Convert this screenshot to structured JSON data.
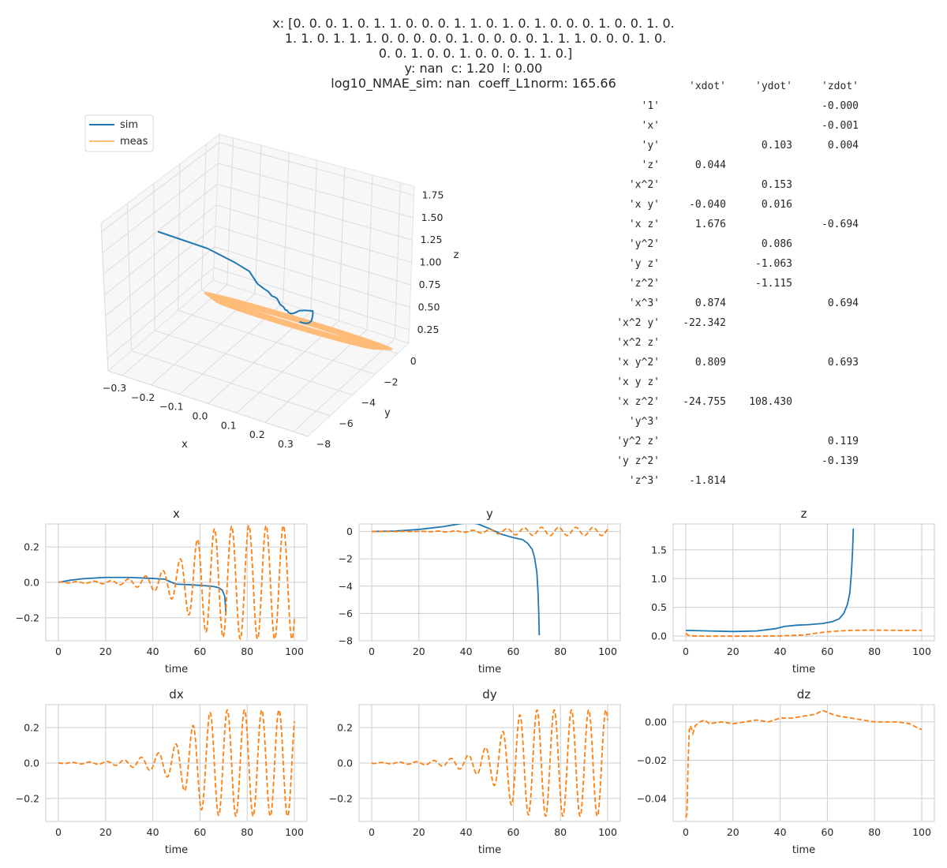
{
  "title_lines": [
    "x: [0. 0. 0. 1. 0. 1. 1. 0. 0. 0. 1. 1. 0. 1. 0. 1. 0. 0. 0. 1. 0. 0. 1. 0.",
    " 1. 1. 0. 1. 1. 1. 0. 0. 0. 0. 0. 1. 0. 0. 0. 0. 1. 1. 1. 0. 0. 0. 1. 0.",
    " 0. 0. 1. 0. 0. 1. 0. 0. 0. 1. 1. 0.]",
    "y: nan  c: 1.20  l: 0.00",
    "log10_NMAE_sim: nan  coeff_L1norm: 165.66"
  ],
  "colors": {
    "sim": "#1f77b4",
    "meas": "#ff7f0e",
    "meas_light": "#ffbb78",
    "grid": "#cccccc"
  },
  "coeff_table": {
    "columns": [
      "'xdot'",
      "'ydot'",
      "'zdot'"
    ],
    "rows": [
      {
        "term": "'1'",
        "xdot": "",
        "ydot": "",
        "zdot": "-0.000"
      },
      {
        "term": "'x'",
        "xdot": "",
        "ydot": "",
        "zdot": "-0.001"
      },
      {
        "term": "'y'",
        "xdot": "",
        "ydot": "0.103",
        "zdot": "0.004"
      },
      {
        "term": "'z'",
        "xdot": "0.044",
        "ydot": "",
        "zdot": ""
      },
      {
        "term": "'x^2'",
        "xdot": "",
        "ydot": "0.153",
        "zdot": ""
      },
      {
        "term": "'x y'",
        "xdot": "-0.040",
        "ydot": "0.016",
        "zdot": ""
      },
      {
        "term": "'x z'",
        "xdot": "1.676",
        "ydot": "",
        "zdot": "-0.694"
      },
      {
        "term": "'y^2'",
        "xdot": "",
        "ydot": "0.086",
        "zdot": ""
      },
      {
        "term": "'y z'",
        "xdot": "",
        "ydot": "-1.063",
        "zdot": ""
      },
      {
        "term": "'z^2'",
        "xdot": "",
        "ydot": "-1.115",
        "zdot": ""
      },
      {
        "term": "'x^3'",
        "xdot": "0.874",
        "ydot": "",
        "zdot": "0.694"
      },
      {
        "term": "'x^2 y'",
        "xdot": "-22.342",
        "ydot": "",
        "zdot": ""
      },
      {
        "term": "'x^2 z'",
        "xdot": "",
        "ydot": "",
        "zdot": ""
      },
      {
        "term": "'x y^2'",
        "xdot": "0.809",
        "ydot": "",
        "zdot": "0.693"
      },
      {
        "term": "'x y z'",
        "xdot": "",
        "ydot": "",
        "zdot": ""
      },
      {
        "term": "'x z^2'",
        "xdot": "-24.755",
        "ydot": "108.430",
        "zdot": ""
      },
      {
        "term": "'y^3'",
        "xdot": "",
        "ydot": "",
        "zdot": ""
      },
      {
        "term": "'y^2 z'",
        "xdot": "",
        "ydot": "",
        "zdot": "0.119"
      },
      {
        "term": "'y z^2'",
        "xdot": "",
        "ydot": "",
        "zdot": "-0.139"
      },
      {
        "term": "'z^3'",
        "xdot": "-1.814",
        "ydot": "",
        "zdot": ""
      }
    ]
  },
  "chart_data": [
    {
      "type": "line3d",
      "legend": [
        "sim",
        "meas"
      ],
      "legend_position": "upper-left",
      "xlabel": "x",
      "ylabel": "y",
      "zlabel": "z",
      "xticks": [
        "−0.3",
        "−0.2",
        "−0.1",
        "0.0",
        "0.1",
        "0.2",
        "0.3"
      ],
      "yticks": [
        "0",
        "−2",
        "−4",
        "−6",
        "−8"
      ],
      "zticks": [
        "0.25",
        "0.50",
        "0.75",
        "1.00",
        "1.25",
        "1.50",
        "1.75"
      ],
      "series": [
        {
          "name": "sim",
          "description": "trajectory leaving the attractor, y decreasing to about -7.6 while z rises to about 1.85"
        },
        {
          "name": "meas",
          "description": "flat elliptical orbit, x in [-0.32, 0.32], y in [-0.3, 0.3], z near 0.1"
        }
      ]
    },
    {
      "type": "line",
      "title": "x",
      "xlabel": "time",
      "xlim": [
        0,
        100
      ],
      "ylim": [
        -0.33,
        0.33
      ],
      "xticks": [
        0,
        20,
        40,
        60,
        80,
        100
      ],
      "yticks": [
        -0.2,
        0.0,
        0.2
      ],
      "series": [
        {
          "name": "sim",
          "style": "solid",
          "points": [
            [
              0,
              0
            ],
            [
              5,
              0.012
            ],
            [
              10,
              0.02
            ],
            [
              20,
              0.028
            ],
            [
              30,
              0.028
            ],
            [
              40,
              0.022
            ],
            [
              45,
              0.018
            ],
            [
              48,
              0
            ],
            [
              50,
              -0.01
            ],
            [
              55,
              -0.013
            ],
            [
              60,
              -0.017
            ],
            [
              65,
              -0.022
            ],
            [
              68,
              -0.03
            ],
            [
              69.5,
              -0.045
            ],
            [
              70.5,
              -0.08
            ],
            [
              71,
              -0.17
            ]
          ]
        },
        {
          "name": "meas",
          "style": "dashed",
          "envelope": [
            [
              0,
              0.002
            ],
            [
              10,
              0.005
            ],
            [
              20,
              0.008
            ],
            [
              25,
              0.012
            ],
            [
              30,
              0.02
            ],
            [
              35,
              0.03
            ],
            [
              40,
              0.045
            ],
            [
              45,
              0.07
            ],
            [
              50,
              0.11
            ],
            [
              55,
              0.18
            ],
            [
              60,
              0.26
            ],
            [
              65,
              0.3
            ],
            [
              70,
              0.31
            ],
            [
              75,
              0.32
            ],
            [
              80,
              0.32
            ],
            [
              100,
              0.32
            ]
          ],
          "period": 7.3,
          "phase": 1.2
        }
      ]
    },
    {
      "type": "line",
      "title": "y",
      "xlabel": "time",
      "xlim": [
        0,
        100
      ],
      "ylim": [
        -8,
        0.55
      ],
      "xticks": [
        0,
        20,
        40,
        60,
        80,
        100
      ],
      "yticks": [
        -8,
        -6,
        -4,
        -2,
        0
      ],
      "series": [
        {
          "name": "sim",
          "style": "solid",
          "points": [
            [
              0,
              0
            ],
            [
              10,
              0.03
            ],
            [
              20,
              0.15
            ],
            [
              30,
              0.35
            ],
            [
              38,
              0.58
            ],
            [
              42,
              0.65
            ],
            [
              45,
              0.55
            ],
            [
              50,
              0.2
            ],
            [
              55,
              -0.2
            ],
            [
              60,
              -0.45
            ],
            [
              64,
              -0.6
            ],
            [
              66,
              -0.85
            ],
            [
              68,
              -1.3
            ],
            [
              69,
              -1.9
            ],
            [
              70,
              -3.0
            ],
            [
              70.5,
              -4.5
            ],
            [
              70.8,
              -6
            ],
            [
              71,
              -7.6
            ]
          ]
        },
        {
          "name": "meas",
          "style": "dashed",
          "envelope": [
            [
              0,
              0.002
            ],
            [
              20,
              0.01
            ],
            [
              30,
              0.03
            ],
            [
              40,
              0.07
            ],
            [
              50,
              0.14
            ],
            [
              60,
              0.24
            ],
            [
              70,
              0.3
            ],
            [
              100,
              0.3
            ]
          ],
          "period": 7.3,
          "phase": 2.5
        }
      ]
    },
    {
      "type": "line",
      "title": "z",
      "xlabel": "time",
      "xlim": [
        0,
        100
      ],
      "ylim": [
        -0.08,
        1.95
      ],
      "xticks": [
        0,
        20,
        40,
        60,
        80,
        100
      ],
      "yticks": [
        0.0,
        0.5,
        1.0,
        1.5
      ],
      "series": [
        {
          "name": "sim",
          "style": "solid",
          "points": [
            [
              0,
              0.1
            ],
            [
              10,
              0.09
            ],
            [
              20,
              0.08
            ],
            [
              30,
              0.09
            ],
            [
              38,
              0.13
            ],
            [
              42,
              0.17
            ],
            [
              47,
              0.19
            ],
            [
              52,
              0.2
            ],
            [
              58,
              0.22
            ],
            [
              62,
              0.25
            ],
            [
              65,
              0.3
            ],
            [
              67,
              0.4
            ],
            [
              68.5,
              0.55
            ],
            [
              69.5,
              0.75
            ],
            [
              70.2,
              1.1
            ],
            [
              70.7,
              1.5
            ],
            [
              71,
              1.87
            ]
          ]
        },
        {
          "name": "meas",
          "style": "dashed",
          "points": [
            [
              0,
              0.05
            ],
            [
              1,
              0.015
            ],
            [
              2,
              0.005
            ],
            [
              10,
              0.0
            ],
            [
              20,
              0.0
            ],
            [
              30,
              0.0
            ],
            [
              40,
              0.005
            ],
            [
              50,
              0.02
            ],
            [
              55,
              0.05
            ],
            [
              60,
              0.075
            ],
            [
              65,
              0.09
            ],
            [
              70,
              0.1
            ],
            [
              80,
              0.105
            ],
            [
              90,
              0.1
            ],
            [
              100,
              0.1
            ]
          ]
        }
      ]
    },
    {
      "type": "line",
      "title": "dx",
      "xlabel": "time",
      "xlim": [
        0,
        100
      ],
      "ylim": [
        -0.33,
        0.33
      ],
      "xticks": [
        0,
        20,
        40,
        60,
        80,
        100
      ],
      "yticks": [
        -0.2,
        0.0,
        0.2
      ],
      "series": [
        {
          "name": "meas",
          "style": "dashed",
          "envelope": [
            [
              0,
              0.002
            ],
            [
              20,
              0.008
            ],
            [
              30,
              0.02
            ],
            [
              40,
              0.045
            ],
            [
              45,
              0.07
            ],
            [
              50,
              0.11
            ],
            [
              55,
              0.18
            ],
            [
              60,
              0.26
            ],
            [
              65,
              0.29
            ],
            [
              70,
              0.3
            ],
            [
              100,
              0.3
            ]
          ],
          "period": 7.3,
          "phase": 2.8
        }
      ]
    },
    {
      "type": "line",
      "title": "dy",
      "xlabel": "time",
      "xlim": [
        0,
        100
      ],
      "ylim": [
        -0.33,
        0.33
      ],
      "xticks": [
        0,
        20,
        40,
        60,
        80,
        100
      ],
      "yticks": [
        -0.2,
        0.0,
        0.2
      ],
      "series": [
        {
          "name": "meas",
          "style": "dashed",
          "envelope": [
            [
              0,
              0.002
            ],
            [
              20,
              0.008
            ],
            [
              30,
              0.018
            ],
            [
              40,
              0.04
            ],
            [
              45,
              0.065
            ],
            [
              50,
              0.1
            ],
            [
              55,
              0.17
            ],
            [
              60,
              0.25
            ],
            [
              65,
              0.29
            ],
            [
              70,
              0.3
            ],
            [
              100,
              0.3
            ]
          ],
          "period": 7.3,
          "phase": 4.1
        }
      ]
    },
    {
      "type": "line",
      "title": "dz",
      "xlabel": "time",
      "xlim": [
        0,
        100
      ],
      "ylim": [
        -0.052,
        0.009
      ],
      "xticks": [
        0,
        20,
        40,
        60,
        80,
        100
      ],
      "yticks": [
        -0.04,
        -0.02,
        0.0
      ],
      "series": [
        {
          "name": "meas",
          "style": "dashed",
          "points": [
            [
              0,
              -0.05
            ],
            [
              0.5,
              -0.048
            ],
            [
              1,
              -0.02
            ],
            [
              1.5,
              -0.004
            ],
            [
              2,
              -0.002
            ],
            [
              3,
              -0.006
            ],
            [
              4,
              -0.002
            ],
            [
              6,
              0.0
            ],
            [
              8,
              0.001
            ],
            [
              10,
              -0.001
            ],
            [
              15,
              0.0
            ],
            [
              20,
              -0.001
            ],
            [
              25,
              0.0
            ],
            [
              30,
              0.001
            ],
            [
              35,
              0.0
            ],
            [
              40,
              0.002
            ],
            [
              45,
              0.002
            ],
            [
              50,
              0.003
            ],
            [
              55,
              0.004
            ],
            [
              58,
              0.006
            ],
            [
              60,
              0.005
            ],
            [
              62,
              0.004
            ],
            [
              65,
              0.003
            ],
            [
              70,
              0.002
            ],
            [
              75,
              0.001
            ],
            [
              80,
              0.0
            ],
            [
              85,
              0.0
            ],
            [
              90,
              0.0
            ],
            [
              95,
              -0.001
            ],
            [
              98,
              -0.003
            ],
            [
              100,
              -0.004
            ]
          ]
        }
      ]
    }
  ]
}
